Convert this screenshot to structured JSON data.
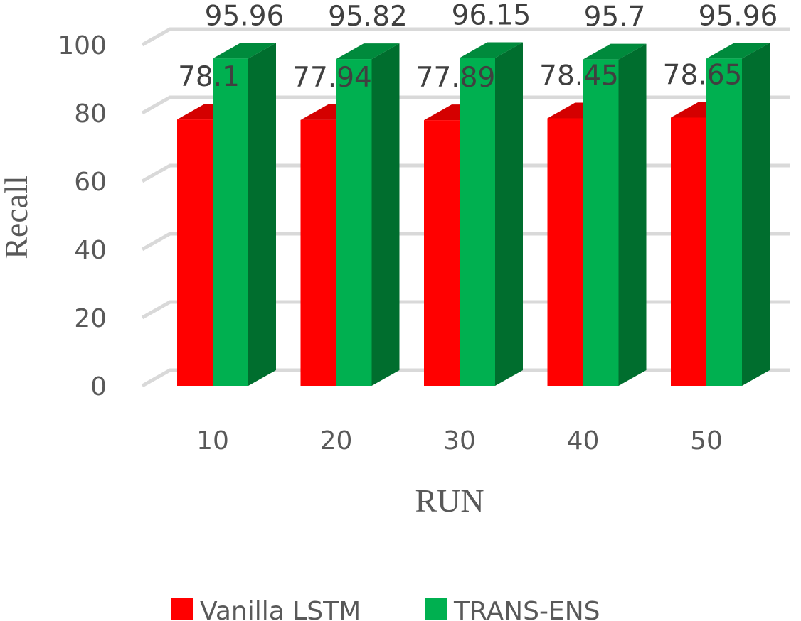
{
  "chart_data": {
    "type": "bar",
    "style": "3d-clustered-column",
    "categories": [
      "10",
      "20",
      "30",
      "40",
      "50"
    ],
    "series": [
      {
        "name": "Vanilla LSTM",
        "values": [
          78.1,
          77.94,
          77.89,
          78.45,
          78.65
        ],
        "color": "#ff0000",
        "side_color": "#c00000",
        "top_color": "#d40000"
      },
      {
        "name": "TRANS-ENS",
        "values": [
          95.96,
          95.82,
          96.15,
          95.7,
          95.96
        ],
        "color": "#00b050",
        "side_color": "#006e2e",
        "top_color": "#008a3c"
      }
    ],
    "xlabel": "RUN",
    "ylabel": "Recall",
    "ylim": [
      0,
      100
    ],
    "yticks": [
      0,
      20,
      40,
      60,
      80,
      100
    ],
    "grid": true,
    "legend_position": "bottom",
    "data_labels": true
  }
}
